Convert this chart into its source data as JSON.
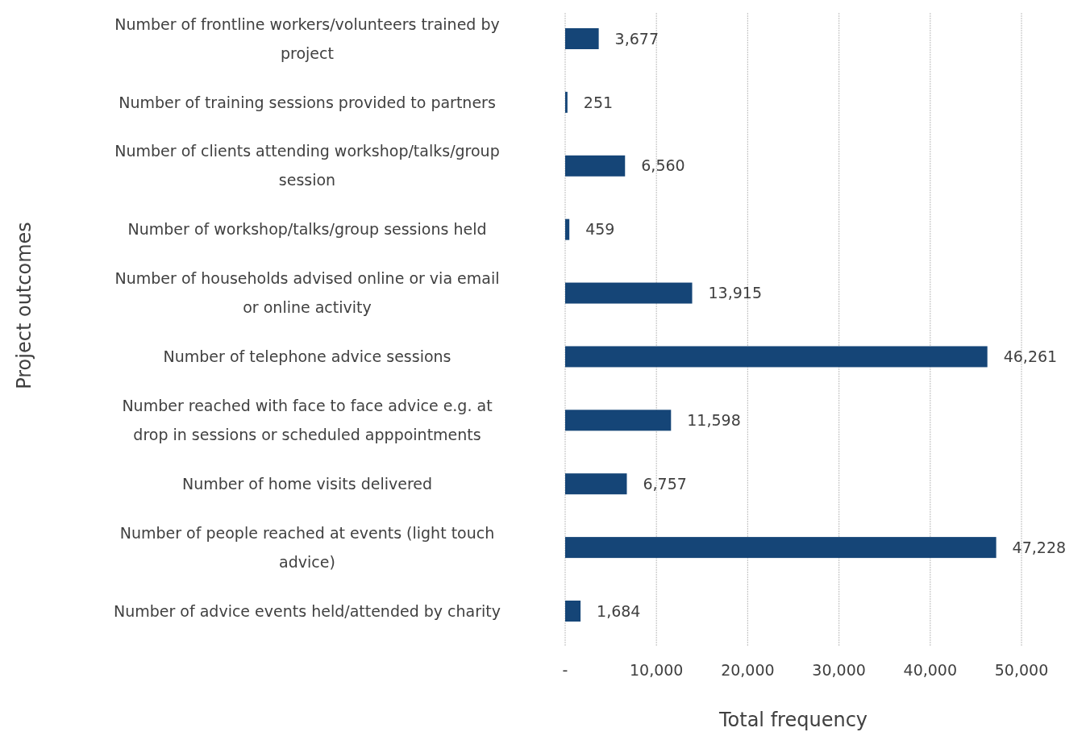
{
  "chart_data": {
    "type": "bar",
    "orientation": "horizontal",
    "ylabel": "Project outcomes",
    "xlabel": "Total frequency",
    "categories": [
      "Number of frontline workers/volunteers trained by project",
      "Number of training sessions provided to partners",
      "Number of clients attending workshop/talks/group session",
      "Number of workshop/talks/group sessions held",
      "Number of households advised online or via email or online activity",
      "Number of telephone advice sessions",
      "Number reached with face to face advice e.g. at drop in sessions or scheduled apppointments",
      "Number of home visits delivered",
      "Number of people reached at events (light touch advice)",
      "Number of advice events held/attended by charity"
    ],
    "values": [
      3677,
      251,
      6560,
      459,
      13915,
      46261,
      11598,
      6757,
      47228,
      1684
    ],
    "value_labels": [
      "3,677",
      "251",
      "6,560",
      "459",
      "13,915",
      "46,261",
      "11,598",
      "6,757",
      "47,228",
      "1,684"
    ],
    "color": "#154577",
    "xlim": [
      0,
      50000
    ],
    "xticks": [
      {
        "value": 0,
        "label": "-"
      },
      {
        "value": 10000,
        "label": "10,000"
      },
      {
        "value": 20000,
        "label": "20,000"
      },
      {
        "value": 30000,
        "label": "30,000"
      },
      {
        "value": 40000,
        "label": "40,000"
      },
      {
        "value": 50000,
        "label": "50,000"
      }
    ],
    "grid": "x"
  }
}
